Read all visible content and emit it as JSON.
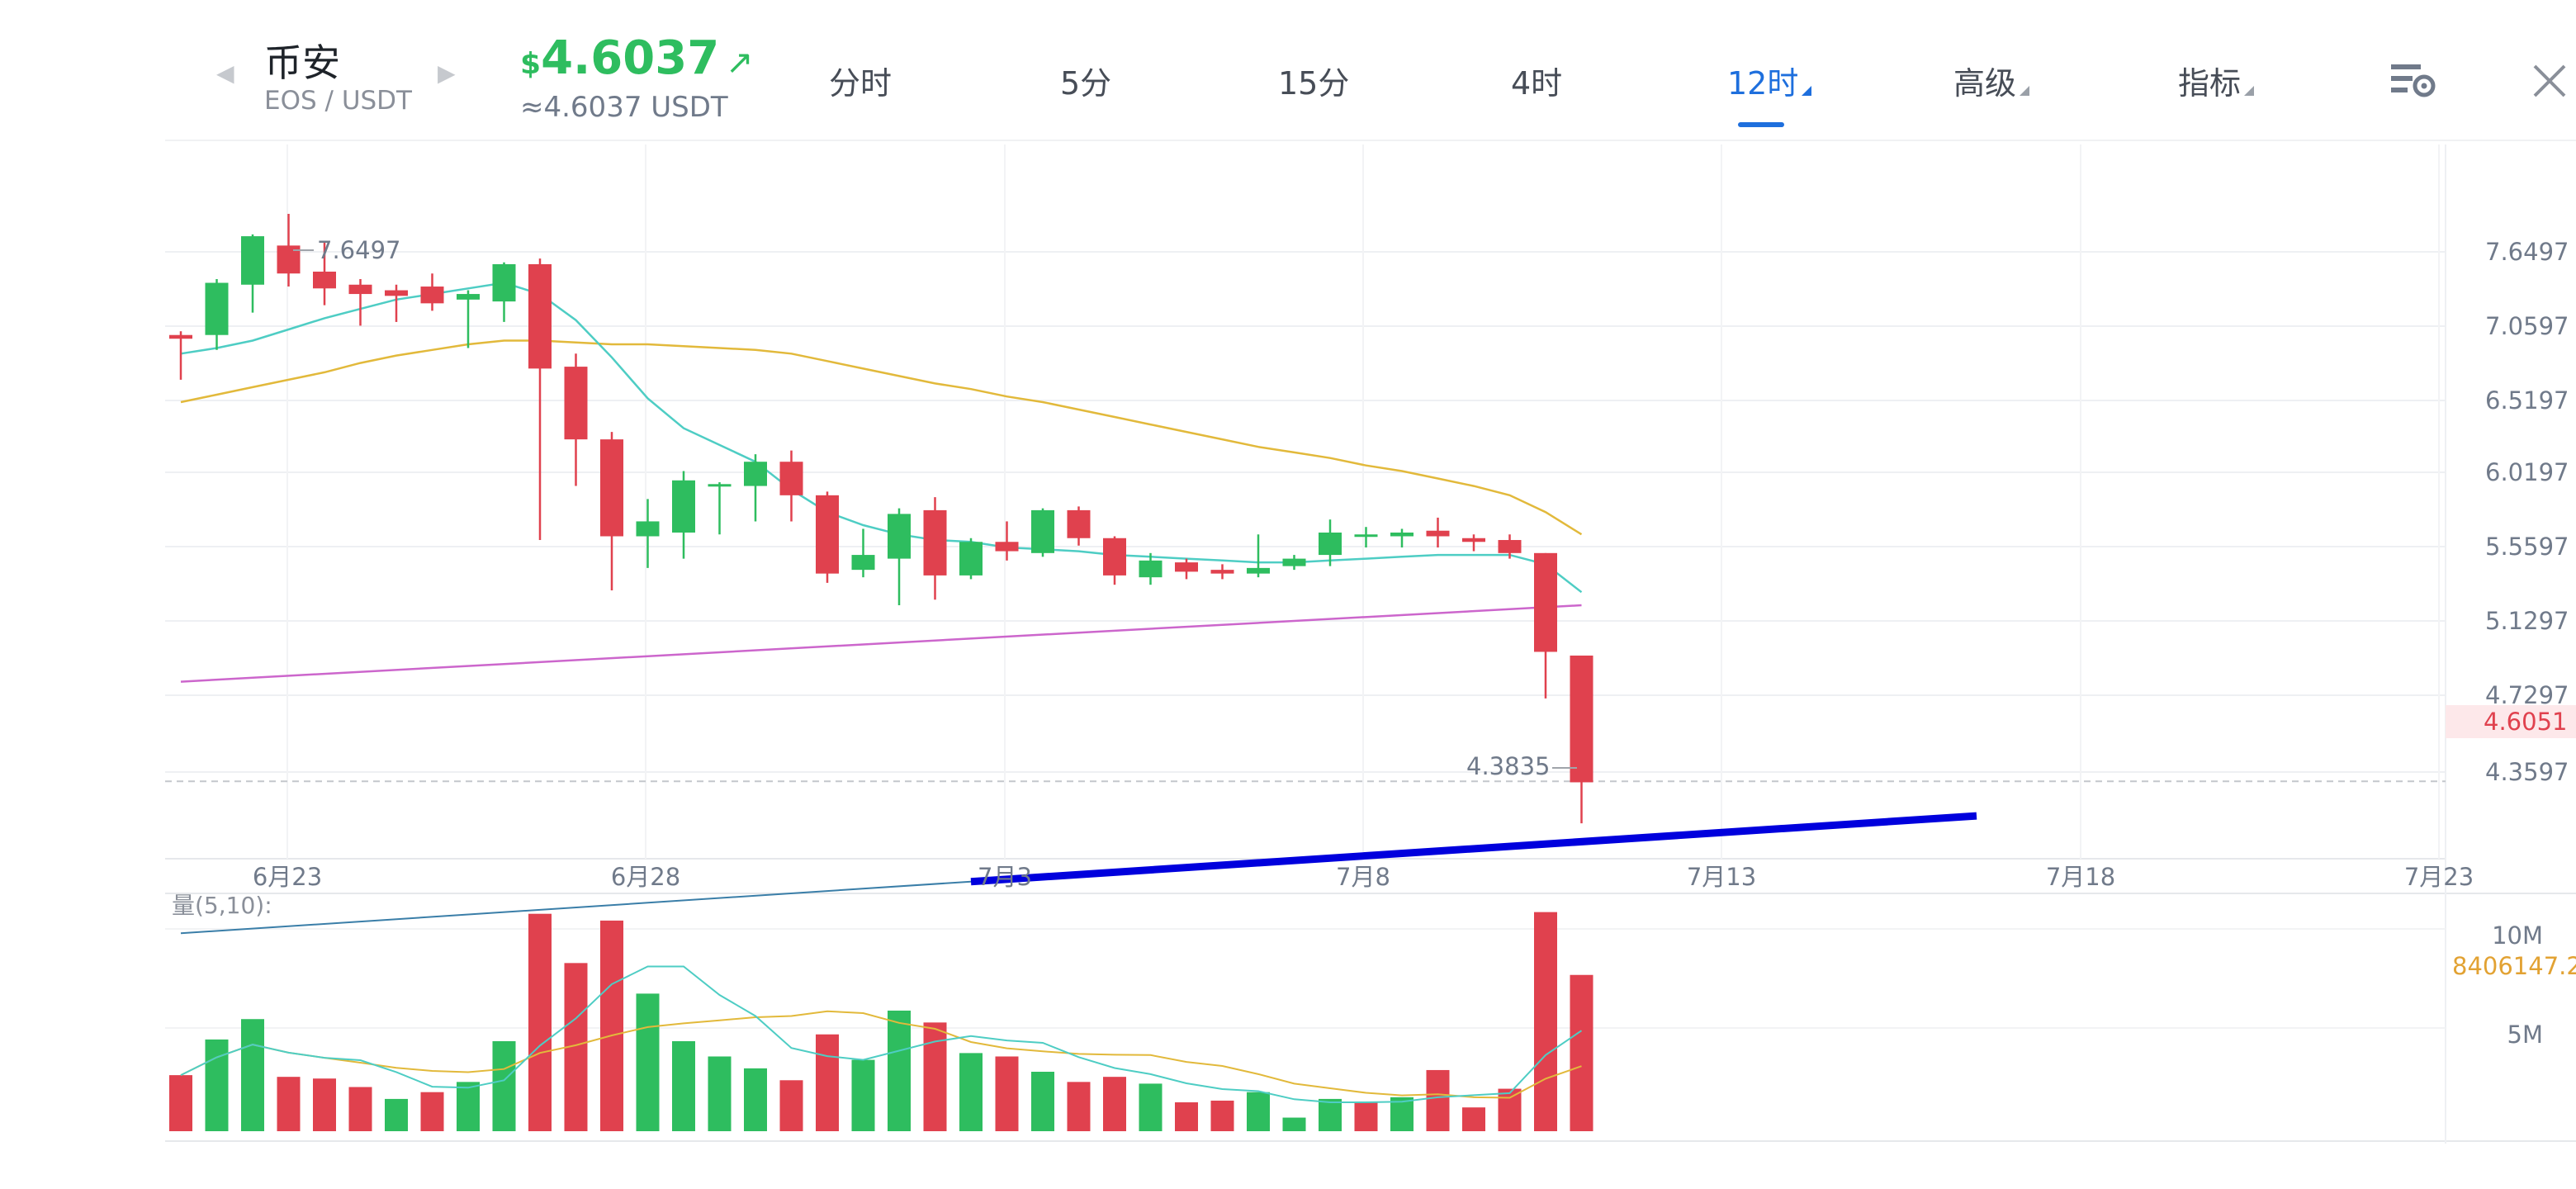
{
  "header": {
    "pair_name": "币安",
    "pair_sub": "EOS / USDT",
    "price_currency": "$",
    "price": "4.6037",
    "price_direction_icon": "arrow-up-right-icon",
    "price_equiv": "≈4.6037 USDT",
    "tabs": [
      {
        "label": "分时",
        "active": false,
        "dropdown": false
      },
      {
        "label": "5分",
        "active": false,
        "dropdown": false
      },
      {
        "label": "15分",
        "active": false,
        "dropdown": false
      },
      {
        "label": "4时",
        "active": false,
        "dropdown": false
      },
      {
        "label": "12时",
        "active": true,
        "dropdown": true
      },
      {
        "label": "高级",
        "active": false,
        "dropdown": true
      },
      {
        "label": "指标",
        "active": false,
        "dropdown": true
      }
    ],
    "icons": [
      "chevron-left-icon",
      "chevron-right-icon",
      "chart-settings-icon",
      "close-icon"
    ]
  },
  "colors": {
    "up": "#2ebd5f",
    "down": "#e0414e",
    "active_tab": "#1e6fdd",
    "ma_fast": "#4ecdc4",
    "ma_slow": "#e2b93b",
    "ma_long": "#cc66cc",
    "trendline": "#0000dd"
  },
  "chart_data": {
    "type": "candlestick",
    "price_axis_labels": [
      "7.6497",
      "7.0597",
      "6.5197",
      "6.0197",
      "5.5597",
      "5.1297",
      "4.7297",
      "4.3597"
    ],
    "current_price_label": "4.6051",
    "high_marker": "7.6497",
    "low_marker": "4.3835",
    "date_labels": [
      "6月23",
      "6月28",
      "7月3",
      "7月8",
      "7月13",
      "7月18",
      "7月23"
    ],
    "volume_label": "量(5,10):",
    "volume_axis_labels": [
      "10M",
      "5M"
    ],
    "volume_current_label": "8406147.2",
    "price_range": [
      4.19,
      8.0
    ],
    "volume_max": 14000000,
    "candles": [
      {
        "o": 7.0,
        "h": 7.02,
        "l": 6.76,
        "c": 6.98
      },
      {
        "o": 7.0,
        "h": 7.3,
        "l": 6.92,
        "c": 7.28
      },
      {
        "o": 7.27,
        "h": 7.54,
        "l": 7.12,
        "c": 7.53
      },
      {
        "o": 7.48,
        "h": 7.65,
        "l": 7.26,
        "c": 7.33
      },
      {
        "o": 7.34,
        "h": 7.5,
        "l": 7.16,
        "c": 7.25
      },
      {
        "o": 7.27,
        "h": 7.3,
        "l": 7.05,
        "c": 7.22
      },
      {
        "o": 7.24,
        "h": 7.27,
        "l": 7.07,
        "c": 7.21
      },
      {
        "o": 7.26,
        "h": 7.33,
        "l": 7.13,
        "c": 7.17
      },
      {
        "o": 7.19,
        "h": 7.24,
        "l": 6.93,
        "c": 7.22
      },
      {
        "o": 7.18,
        "h": 7.39,
        "l": 7.07,
        "c": 7.38
      },
      {
        "o": 7.38,
        "h": 7.41,
        "l": 5.9,
        "c": 6.82
      },
      {
        "o": 6.83,
        "h": 6.9,
        "l": 6.19,
        "c": 6.44
      },
      {
        "o": 6.44,
        "h": 6.48,
        "l": 5.63,
        "c": 5.92
      },
      {
        "o": 5.92,
        "h": 6.12,
        "l": 5.75,
        "c": 6.0
      },
      {
        "o": 5.94,
        "h": 6.27,
        "l": 5.8,
        "c": 6.22
      },
      {
        "o": 6.2,
        "h": 6.21,
        "l": 5.93,
        "c": 6.2
      },
      {
        "o": 6.19,
        "h": 6.36,
        "l": 6.0,
        "c": 6.32
      },
      {
        "o": 6.32,
        "h": 6.38,
        "l": 6.0,
        "c": 6.14
      },
      {
        "o": 6.14,
        "h": 6.16,
        "l": 5.67,
        "c": 5.72
      },
      {
        "o": 5.74,
        "h": 5.96,
        "l": 5.7,
        "c": 5.82
      },
      {
        "o": 5.8,
        "h": 6.07,
        "l": 5.55,
        "c": 6.04
      },
      {
        "o": 6.06,
        "h": 6.13,
        "l": 5.58,
        "c": 5.71
      },
      {
        "o": 5.71,
        "h": 5.91,
        "l": 5.69,
        "c": 5.89
      },
      {
        "o": 5.89,
        "h": 6.0,
        "l": 5.79,
        "c": 5.84
      },
      {
        "o": 5.83,
        "h": 6.07,
        "l": 5.81,
        "c": 6.06
      },
      {
        "o": 6.06,
        "h": 6.08,
        "l": 5.87,
        "c": 5.91
      },
      {
        "o": 5.91,
        "h": 5.92,
        "l": 5.66,
        "c": 5.71
      },
      {
        "o": 5.7,
        "h": 5.83,
        "l": 5.66,
        "c": 5.79
      },
      {
        "o": 5.78,
        "h": 5.8,
        "l": 5.69,
        "c": 5.73
      },
      {
        "o": 5.74,
        "h": 5.77,
        "l": 5.69,
        "c": 5.72
      },
      {
        "o": 5.72,
        "h": 5.93,
        "l": 5.7,
        "c": 5.75
      },
      {
        "o": 5.76,
        "h": 5.82,
        "l": 5.74,
        "c": 5.8
      },
      {
        "o": 5.82,
        "h": 6.01,
        "l": 5.76,
        "c": 5.94
      },
      {
        "o": 5.92,
        "h": 5.97,
        "l": 5.86,
        "c": 5.93
      },
      {
        "o": 5.92,
        "h": 5.96,
        "l": 5.86,
        "c": 5.94
      },
      {
        "o": 5.95,
        "h": 6.02,
        "l": 5.86,
        "c": 5.92
      },
      {
        "o": 5.91,
        "h": 5.93,
        "l": 5.84,
        "c": 5.89
      },
      {
        "o": 5.9,
        "h": 5.93,
        "l": 5.8,
        "c": 5.83
      },
      {
        "o": 5.83,
        "h": 5.83,
        "l": 5.05,
        "c": 5.3
      },
      {
        "o": 5.28,
        "h": 5.28,
        "l": 4.38,
        "c": 4.6
      }
    ],
    "volume": [
      {
        "v": 3300000,
        "up": false
      },
      {
        "v": 5400000,
        "up": true
      },
      {
        "v": 6600000,
        "up": true
      },
      {
        "v": 3200000,
        "up": false
      },
      {
        "v": 3100000,
        "up": false
      },
      {
        "v": 2600000,
        "up": false
      },
      {
        "v": 1900000,
        "up": true
      },
      {
        "v": 2300000,
        "up": false
      },
      {
        "v": 2900000,
        "up": true
      },
      {
        "v": 5300000,
        "up": true
      },
      {
        "v": 12800000,
        "up": false
      },
      {
        "v": 9900000,
        "up": false
      },
      {
        "v": 12400000,
        "up": false
      },
      {
        "v": 8100000,
        "up": true
      },
      {
        "v": 5300000,
        "up": true
      },
      {
        "v": 4400000,
        "up": true
      },
      {
        "v": 3700000,
        "up": true
      },
      {
        "v": 3000000,
        "up": false
      },
      {
        "v": 5700000,
        "up": false
      },
      {
        "v": 4200000,
        "up": true
      },
      {
        "v": 7100000,
        "up": true
      },
      {
        "v": 6400000,
        "up": false
      },
      {
        "v": 4600000,
        "up": true
      },
      {
        "v": 4400000,
        "up": false
      },
      {
        "v": 3500000,
        "up": true
      },
      {
        "v": 2900000,
        "up": false
      },
      {
        "v": 3200000,
        "up": false
      },
      {
        "v": 2800000,
        "up": true
      },
      {
        "v": 1700000,
        "up": false
      },
      {
        "v": 1800000,
        "up": false
      },
      {
        "v": 2300000,
        "up": true
      },
      {
        "v": 800000,
        "up": true
      },
      {
        "v": 1900000,
        "up": true
      },
      {
        "v": 1700000,
        "up": false
      },
      {
        "v": 2000000,
        "up": true
      },
      {
        "v": 3600000,
        "up": false
      },
      {
        "v": 1400000,
        "up": false
      },
      {
        "v": 2500000,
        "up": false
      },
      {
        "v": 12900000,
        "up": false
      },
      {
        "v": 9200000,
        "up": false
      }
    ],
    "ma_fast": [
      6.9,
      6.93,
      6.97,
      7.03,
      7.09,
      7.14,
      7.19,
      7.22,
      7.25,
      7.28,
      7.22,
      7.08,
      6.88,
      6.66,
      6.5,
      6.41,
      6.32,
      6.17,
      6.05,
      5.98,
      5.93,
      5.9,
      5.89,
      5.86,
      5.85,
      5.84,
      5.82,
      5.81,
      5.8,
      5.79,
      5.78,
      5.78,
      5.79,
      5.8,
      5.81,
      5.82,
      5.82,
      5.82,
      5.77,
      5.62
    ],
    "ma_slow": [
      6.64,
      6.68,
      6.72,
      6.76,
      6.8,
      6.85,
      6.89,
      6.92,
      6.95,
      6.97,
      6.97,
      6.96,
      6.95,
      6.95,
      6.94,
      6.93,
      6.92,
      6.9,
      6.86,
      6.82,
      6.78,
      6.74,
      6.71,
      6.67,
      6.64,
      6.6,
      6.56,
      6.52,
      6.48,
      6.44,
      6.4,
      6.37,
      6.34,
      6.3,
      6.27,
      6.23,
      6.19,
      6.14,
      6.05,
      5.93
    ],
    "ma_long_range": [
      5.14,
      5.55
    ],
    "trendline": {
      "from_index": 0,
      "from_value": 3.79,
      "to_index": 50,
      "to_value": 4.42,
      "bold_from_index": 22
    }
  }
}
